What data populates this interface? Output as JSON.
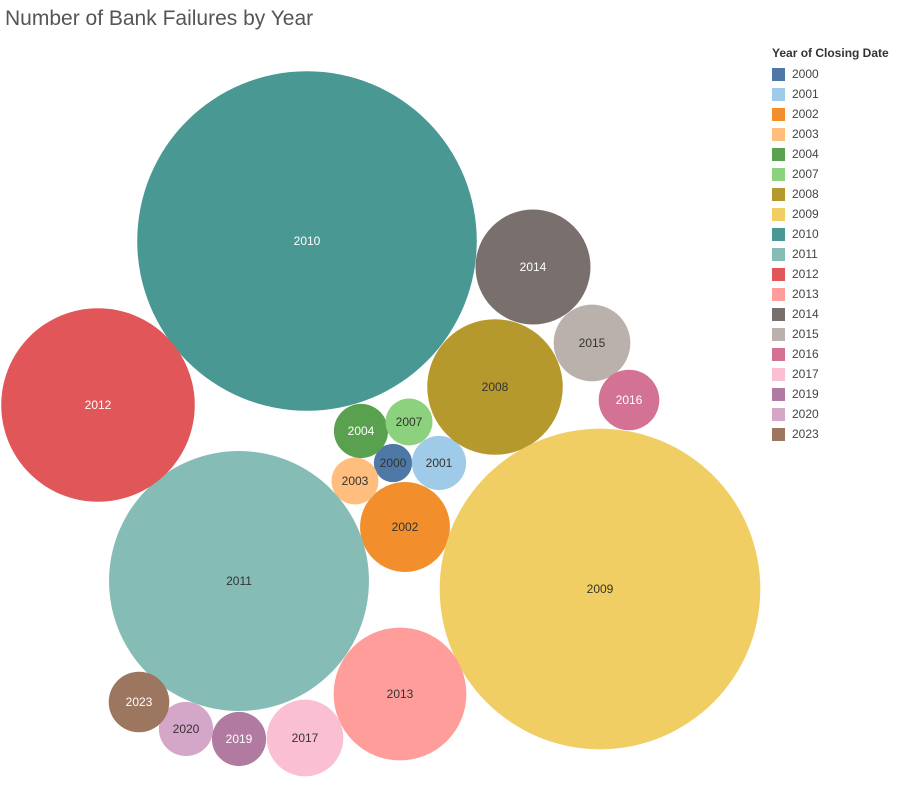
{
  "page": {
    "title": "Number of Bank Failures by Year"
  },
  "chart_data": {
    "type": "bubble",
    "title": "Number of Bank Failures by Year",
    "legend": {
      "title": "Year of Closing Date",
      "placement": "right"
    },
    "categories": [
      "2000",
      "2001",
      "2002",
      "2003",
      "2004",
      "2007",
      "2008",
      "2009",
      "2010",
      "2011",
      "2012",
      "2013",
      "2014",
      "2015",
      "2016",
      "2017",
      "2019",
      "2020",
      "2023"
    ],
    "values": [
      2,
      4,
      11,
      3,
      4,
      3,
      25,
      140,
      157,
      92,
      51,
      24,
      18,
      8,
      5,
      8,
      4,
      4,
      5
    ],
    "colors": {
      "2000": "#4e79a7",
      "2001": "#a0cbe8",
      "2002": "#f28e2b",
      "2003": "#ffbe7d",
      "2004": "#59a14f",
      "2007": "#8cd17d",
      "2008": "#b6992d",
      "2009": "#f1ce63",
      "2010": "#499894",
      "2011": "#86bcb6",
      "2012": "#e15759",
      "2013": "#ff9d9a",
      "2014": "#79706e",
      "2015": "#bab0ac",
      "2016": "#d37295",
      "2017": "#fabfd2",
      "2019": "#b07aa1",
      "2020": "#d4a6c8",
      "2023": "#9d7660"
    }
  }
}
